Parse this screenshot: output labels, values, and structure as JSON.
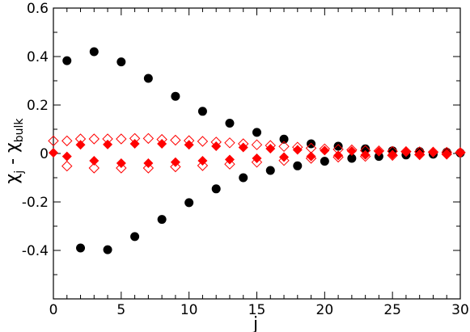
{
  "chart_data": {
    "type": "scatter",
    "title": "",
    "xlabel": "j",
    "ylabel": {
      "chi": "χ",
      "sub_j": "j",
      "minus": " - ",
      "chi2": "χ",
      "sub_bulk": "bulk"
    },
    "xlim": [
      0,
      30
    ],
    "ylim": [
      -0.6,
      0.6
    ],
    "xticks": [
      0,
      5,
      10,
      15,
      20,
      25,
      30
    ],
    "yticks": [
      -0.4,
      -0.2,
      0,
      0.2,
      0.4,
      0.6
    ],
    "ytick_labels": [
      "-0.4",
      "-0.2",
      "0",
      "0.2",
      "0.4",
      "0.6"
    ],
    "xtick_labels": [
      "0",
      "5",
      "10",
      "15",
      "20",
      "25",
      "30"
    ],
    "grid": false,
    "series": [
      {
        "marker": "filled-circle",
        "color": "#000000",
        "x": [
          1,
          2,
          3,
          4,
          5,
          6,
          7,
          8,
          9,
          10,
          11,
          12,
          13,
          14,
          15,
          16,
          17,
          18,
          19,
          20,
          21,
          22,
          23,
          24,
          25,
          26,
          27,
          28,
          29,
          30
        ],
        "y": [
          0.383,
          -0.39,
          0.42,
          -0.397,
          0.378,
          -0.343,
          0.31,
          -0.272,
          0.236,
          -0.203,
          0.174,
          -0.146,
          0.125,
          -0.1,
          0.087,
          -0.07,
          0.059,
          -0.051,
          0.04,
          -0.032,
          0.03,
          -0.02,
          0.019,
          -0.012,
          0.011,
          -0.006,
          0.008,
          -0.003,
          0.005,
          0.002
        ]
      },
      {
        "marker": "filled-diamond",
        "color": "#ff0000",
        "x": [
          0,
          1,
          2,
          3,
          4,
          5,
          6,
          7,
          8,
          9,
          10,
          11,
          12,
          13,
          14,
          15,
          16,
          17,
          18,
          19,
          20,
          21,
          22,
          23,
          24,
          25,
          26,
          27,
          28,
          29,
          30
        ],
        "y": [
          0.003,
          -0.012,
          0.036,
          -0.03,
          0.037,
          -0.04,
          0.04,
          -0.04,
          0.04,
          -0.036,
          0.036,
          -0.03,
          0.03,
          -0.025,
          0.025,
          -0.02,
          0.02,
          -0.015,
          0.015,
          -0.012,
          0.012,
          -0.008,
          0.01,
          -0.006,
          0.008,
          -0.005,
          0.006,
          -0.003,
          0.004,
          -0.002,
          0.003
        ]
      },
      {
        "marker": "open-diamond",
        "color": "#ff0000",
        "x": [
          0,
          1,
          1,
          2,
          3,
          3,
          4,
          5,
          5,
          6,
          7,
          7,
          8,
          9,
          9,
          10,
          11,
          11,
          12,
          13,
          13,
          14,
          15,
          15,
          16,
          17,
          17,
          18,
          19,
          19,
          20,
          21,
          21,
          22,
          23,
          23,
          24,
          25,
          25,
          26,
          27,
          27,
          28,
          29,
          29,
          30
        ],
        "y": [
          0.052,
          0.052,
          -0.052,
          0.06,
          0.06,
          -0.06,
          0.06,
          0.06,
          -0.06,
          0.062,
          0.062,
          -0.06,
          0.058,
          0.055,
          -0.055,
          0.053,
          0.05,
          -0.05,
          0.047,
          0.044,
          -0.044,
          0.04,
          0.036,
          -0.036,
          0.033,
          0.029,
          -0.029,
          0.026,
          0.022,
          -0.02,
          0.019,
          0.017,
          -0.015,
          0.015,
          0.012,
          -0.012,
          0.011,
          0.009,
          -0.008,
          0.008,
          0.007,
          -0.005,
          0.006,
          0.005,
          -0.003,
          0.004
        ]
      }
    ]
  }
}
